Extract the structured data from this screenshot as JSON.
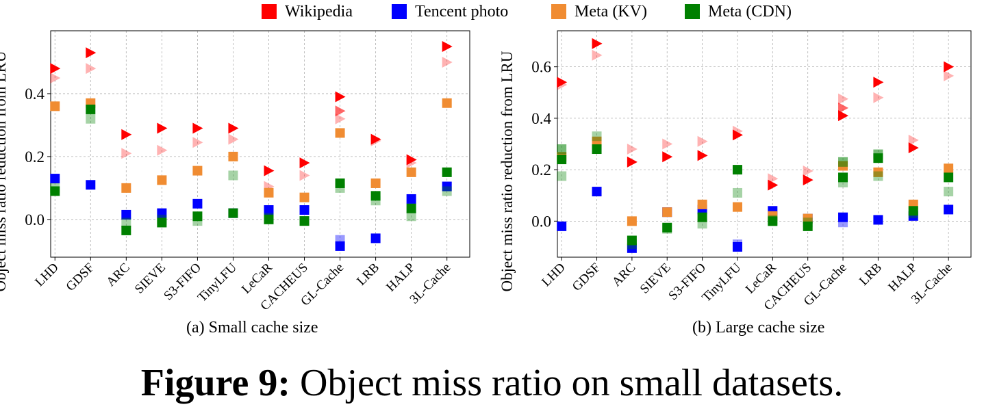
{
  "legend": [
    {
      "name": "Wikipedia",
      "color": "#ff0000",
      "marker": "triangle-right"
    },
    {
      "name": "Tencent photo",
      "color": "#0000ff",
      "marker": "square"
    },
    {
      "name": "Meta (KV)",
      "color": "#f08c32",
      "marker": "square"
    },
    {
      "name": "Meta (CDN)",
      "color": "#008000",
      "marker": "square"
    }
  ],
  "chart_data": [
    {
      "type": "scatter",
      "caption": "(a) Small cache size",
      "ylabel": "Object miss ratio reduction from LRU",
      "xlabel": "",
      "ylim": [
        -0.12,
        0.6
      ],
      "yticks": [
        0.0,
        0.2,
        0.4
      ],
      "ytick_labels": [
        "0.0",
        "0.2",
        "0.4"
      ],
      "grid": true,
      "categories": [
        "LHD",
        "GDSF",
        "ARC",
        "SIEVE",
        "S3-FIFO",
        "TinyLFU",
        "LeCaR",
        "CACHEUS",
        "GL-Cache",
        "LRB",
        "HALP",
        "3L-Cache"
      ],
      "series": [
        {
          "name": "Wikipedia",
          "color": "#ff0000",
          "marker": "triangle-right",
          "opacity": 1.0,
          "values": [
            0.48,
            0.53,
            0.27,
            0.29,
            0.29,
            0.29,
            0.155,
            0.18,
            0.39,
            0.255,
            0.19,
            0.55
          ]
        },
        {
          "name": "Wikipedia",
          "color": "#ff0000",
          "marker": "triangle-right",
          "opacity": 0.3,
          "values": [
            0.45,
            0.48,
            0.21,
            0.22,
            0.245,
            0.255,
            0.105,
            0.14,
            0.32,
            0.25,
            0.18,
            0.5
          ]
        },
        {
          "name": "Wikipedia",
          "color": "#ff0000",
          "marker": "triangle-right",
          "opacity": 0.6,
          "values": [
            null,
            null,
            null,
            null,
            null,
            null,
            null,
            null,
            0.345,
            null,
            null,
            null
          ]
        },
        {
          "name": "Tencent photo",
          "color": "#0000ff",
          "marker": "square",
          "opacity": 1.0,
          "values": [
            0.13,
            0.11,
            0.015,
            0.02,
            0.05,
            0.02,
            0.03,
            0.03,
            -0.085,
            -0.06,
            0.065,
            0.105
          ]
        },
        {
          "name": "Tencent photo",
          "color": "#0000ff",
          "marker": "square",
          "opacity": 0.4,
          "values": [
            null,
            null,
            null,
            null,
            null,
            null,
            null,
            null,
            -0.065,
            null,
            null,
            null
          ]
        },
        {
          "name": "Meta (KV)",
          "color": "#f08c32",
          "marker": "square",
          "opacity": 1.0,
          "values": [
            0.36,
            0.37,
            0.1,
            0.125,
            0.155,
            0.2,
            0.085,
            0.07,
            0.275,
            0.115,
            0.15,
            0.37
          ]
        },
        {
          "name": "Meta (CDN)",
          "color": "#008000",
          "marker": "square",
          "opacity": 1.0,
          "values": [
            0.09,
            0.35,
            -0.035,
            -0.01,
            0.01,
            0.02,
            0.0,
            -0.005,
            0.115,
            0.075,
            0.035,
            0.15
          ]
        },
        {
          "name": "Meta (CDN)",
          "color": "#008000",
          "marker": "square",
          "opacity": 0.35,
          "values": [
            0.1,
            0.32,
            -0.01,
            0.0,
            -0.005,
            0.14,
            0.005,
            -0.005,
            0.1,
            0.06,
            0.01,
            0.09
          ]
        }
      ]
    },
    {
      "type": "scatter",
      "caption": "(b) Large cache size",
      "ylabel": "Object miss ratio reduction from LRU",
      "xlabel": "",
      "ylim": [
        -0.14,
        0.74
      ],
      "yticks": [
        0.0,
        0.2,
        0.4,
        0.6
      ],
      "ytick_labels": [
        "0.0",
        "0.2",
        "0.4",
        "0.6"
      ],
      "grid": true,
      "categories": [
        "LHD",
        "GDSF",
        "ARC",
        "SIEVE",
        "S3-FIFO",
        "TinyLFU",
        "LeCaR",
        "CACHEUS",
        "GL-Cache",
        "LRB",
        "HALP",
        "3L-Cache"
      ],
      "series": [
        {
          "name": "Wikipedia",
          "color": "#ff0000",
          "marker": "triangle-right",
          "opacity": 1.0,
          "values": [
            0.54,
            0.69,
            0.23,
            0.25,
            0.255,
            0.335,
            0.14,
            0.16,
            0.41,
            0.54,
            0.285,
            0.6
          ]
        },
        {
          "name": "Wikipedia",
          "color": "#ff0000",
          "marker": "triangle-right",
          "opacity": 0.3,
          "values": [
            0.53,
            0.645,
            0.28,
            0.3,
            0.31,
            0.35,
            0.165,
            0.195,
            0.475,
            0.48,
            0.315,
            0.565
          ]
        },
        {
          "name": "Wikipedia",
          "color": "#ff0000",
          "marker": "triangle-right",
          "opacity": 0.6,
          "values": [
            null,
            null,
            null,
            null,
            null,
            null,
            null,
            null,
            0.44,
            null,
            null,
            null
          ]
        },
        {
          "name": "Tencent photo",
          "color": "#0000ff",
          "marker": "square",
          "opacity": 1.0,
          "values": [
            -0.02,
            0.115,
            -0.105,
            0.035,
            0.045,
            -0.1,
            0.04,
            0.01,
            0.015,
            0.005,
            0.02,
            0.045
          ]
        },
        {
          "name": "Tencent photo",
          "color": "#0000ff",
          "marker": "square",
          "opacity": 0.4,
          "values": [
            null,
            null,
            null,
            null,
            null,
            -0.09,
            null,
            null,
            -0.005,
            null,
            null,
            null
          ]
        },
        {
          "name": "Meta (KV)",
          "color": "#f08c32",
          "marker": "square",
          "opacity": 1.0,
          "values": [
            0.25,
            0.31,
            0.0,
            0.035,
            0.065,
            0.055,
            0.02,
            0.01,
            0.215,
            0.19,
            0.065,
            0.205
          ]
        },
        {
          "name": "Meta (CDN)",
          "color": "#008000",
          "marker": "square",
          "opacity": 1.0,
          "values": [
            0.24,
            0.28,
            -0.075,
            -0.025,
            0.015,
            0.2,
            0.0,
            -0.02,
            0.17,
            0.245,
            0.04,
            0.17
          ]
        },
        {
          "name": "Meta (CDN)",
          "color": "#008000",
          "marker": "square",
          "opacity": 0.35,
          "values": [
            0.175,
            0.33,
            -0.09,
            -0.03,
            -0.01,
            0.11,
            0.005,
            -0.005,
            0.15,
            0.175,
            0.03,
            0.115
          ]
        },
        {
          "name": "Meta (CDN)",
          "color": "#008000",
          "marker": "square",
          "opacity": 0.55,
          "values": [
            0.28,
            null,
            null,
            null,
            null,
            null,
            null,
            null,
            0.23,
            0.26,
            null,
            null
          ]
        }
      ]
    }
  ],
  "figure_caption": {
    "label": "Figure 9:",
    "text": " Object miss ratio on small datasets."
  }
}
